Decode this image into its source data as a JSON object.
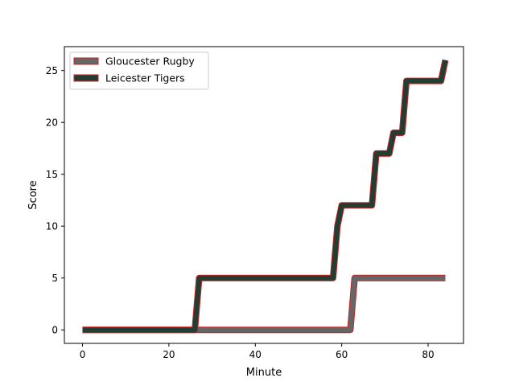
{
  "chart_data": {
    "type": "line",
    "title": "",
    "xlabel": "Minute",
    "ylabel": "Score",
    "xlim": [
      -4.2,
      88.2
    ],
    "ylim": [
      -1.3,
      27.3
    ],
    "xticks": [
      0,
      20,
      40,
      60,
      80
    ],
    "yticks": [
      0,
      5,
      10,
      15,
      20,
      25
    ],
    "grid": false,
    "legend": "top-left",
    "series": [
      {
        "name": "Gloucester Rugby",
        "color": "#666666",
        "edge_color": "#cc2222",
        "x": [
          0,
          62,
          63,
          84
        ],
        "y": [
          0,
          0,
          5,
          5
        ]
      },
      {
        "name": "Leicester Tigers",
        "color": "#233d33",
        "edge_color": "#cc2222",
        "x": [
          0,
          26,
          27,
          58,
          59,
          60,
          67,
          68,
          71,
          72,
          74,
          75,
          83,
          84
        ],
        "y": [
          0,
          0,
          5,
          5,
          10,
          12,
          12,
          17,
          17,
          19,
          19,
          24,
          24,
          26
        ]
      }
    ]
  }
}
